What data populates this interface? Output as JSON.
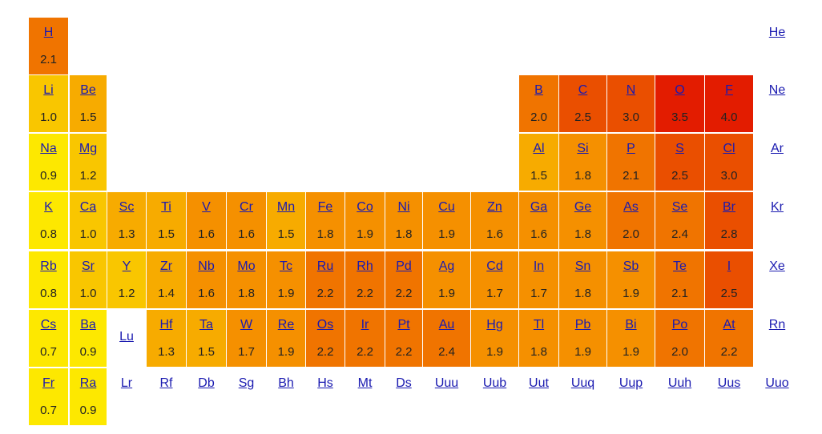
{
  "colors": {
    "link": "#1a1ab0",
    "scale": [
      "#fde800",
      "#f9c600",
      "#f7ab00",
      "#f59000",
      "#f07400",
      "#ea4f00",
      "#e31c00"
    ]
  },
  "elements": [
    {
      "symbol": "H",
      "value": "2.1",
      "row": 1,
      "col": 1
    },
    {
      "symbol": "He",
      "value": "",
      "row": 1,
      "col": 18
    },
    {
      "symbol": "Li",
      "value": "1.0",
      "row": 2,
      "col": 1
    },
    {
      "symbol": "Be",
      "value": "1.5",
      "row": 2,
      "col": 2
    },
    {
      "symbol": "B",
      "value": "2.0",
      "row": 2,
      "col": 13
    },
    {
      "symbol": "C",
      "value": "2.5",
      "row": 2,
      "col": 14
    },
    {
      "symbol": "N",
      "value": "3.0",
      "row": 2,
      "col": 15
    },
    {
      "symbol": "O",
      "value": "3.5",
      "row": 2,
      "col": 16
    },
    {
      "symbol": "F",
      "value": "4.0",
      "row": 2,
      "col": 17
    },
    {
      "symbol": "Ne",
      "value": "",
      "row": 2,
      "col": 18
    },
    {
      "symbol": "Na",
      "value": "0.9",
      "row": 3,
      "col": 1
    },
    {
      "symbol": "Mg",
      "value": "1.2",
      "row": 3,
      "col": 2
    },
    {
      "symbol": "Al",
      "value": "1.5",
      "row": 3,
      "col": 13
    },
    {
      "symbol": "Si",
      "value": "1.8",
      "row": 3,
      "col": 14
    },
    {
      "symbol": "P",
      "value": "2.1",
      "row": 3,
      "col": 15
    },
    {
      "symbol": "S",
      "value": "2.5",
      "row": 3,
      "col": 16
    },
    {
      "symbol": "Cl",
      "value": "3.0",
      "row": 3,
      "col": 17
    },
    {
      "symbol": "Ar",
      "value": "",
      "row": 3,
      "col": 18
    },
    {
      "symbol": "K",
      "value": "0.8",
      "row": 4,
      "col": 1
    },
    {
      "symbol": "Ca",
      "value": "1.0",
      "row": 4,
      "col": 2
    },
    {
      "symbol": "Sc",
      "value": "1.3",
      "row": 4,
      "col": 3
    },
    {
      "symbol": "Ti",
      "value": "1.5",
      "row": 4,
      "col": 4
    },
    {
      "symbol": "V",
      "value": "1.6",
      "row": 4,
      "col": 5
    },
    {
      "symbol": "Cr",
      "value": "1.6",
      "row": 4,
      "col": 6
    },
    {
      "symbol": "Mn",
      "value": "1.5",
      "row": 4,
      "col": 7
    },
    {
      "symbol": "Fe",
      "value": "1.8",
      "row": 4,
      "col": 8
    },
    {
      "symbol": "Co",
      "value": "1.9",
      "row": 4,
      "col": 9
    },
    {
      "symbol": "Ni",
      "value": "1.8",
      "row": 4,
      "col": 10
    },
    {
      "symbol": "Cu",
      "value": "1.9",
      "row": 4,
      "col": 11
    },
    {
      "symbol": "Zn",
      "value": "1.6",
      "row": 4,
      "col": 12
    },
    {
      "symbol": "Ga",
      "value": "1.6",
      "row": 4,
      "col": 13
    },
    {
      "symbol": "Ge",
      "value": "1.8",
      "row": 4,
      "col": 14
    },
    {
      "symbol": "As",
      "value": "2.0",
      "row": 4,
      "col": 15
    },
    {
      "symbol": "Se",
      "value": "2.4",
      "row": 4,
      "col": 16
    },
    {
      "symbol": "Br",
      "value": "2.8",
      "row": 4,
      "col": 17
    },
    {
      "symbol": "Kr",
      "value": "",
      "row": 4,
      "col": 18
    },
    {
      "symbol": "Rb",
      "value": "0.8",
      "row": 5,
      "col": 1
    },
    {
      "symbol": "Sr",
      "value": "1.0",
      "row": 5,
      "col": 2
    },
    {
      "symbol": "Y",
      "value": "1.2",
      "row": 5,
      "col": 3
    },
    {
      "symbol": "Zr",
      "value": "1.4",
      "row": 5,
      "col": 4
    },
    {
      "symbol": "Nb",
      "value": "1.6",
      "row": 5,
      "col": 5
    },
    {
      "symbol": "Mo",
      "value": "1.8",
      "row": 5,
      "col": 6
    },
    {
      "symbol": "Tc",
      "value": "1.9",
      "row": 5,
      "col": 7
    },
    {
      "symbol": "Ru",
      "value": "2.2",
      "row": 5,
      "col": 8
    },
    {
      "symbol": "Rh",
      "value": "2.2",
      "row": 5,
      "col": 9
    },
    {
      "symbol": "Pd",
      "value": "2.2",
      "row": 5,
      "col": 10
    },
    {
      "symbol": "Ag",
      "value": "1.9",
      "row": 5,
      "col": 11
    },
    {
      "symbol": "Cd",
      "value": "1.7",
      "row": 5,
      "col": 12
    },
    {
      "symbol": "In",
      "value": "1.7",
      "row": 5,
      "col": 13
    },
    {
      "symbol": "Sn",
      "value": "1.8",
      "row": 5,
      "col": 14
    },
    {
      "symbol": "Sb",
      "value": "1.9",
      "row": 5,
      "col": 15
    },
    {
      "symbol": "Te",
      "value": "2.1",
      "row": 5,
      "col": 16
    },
    {
      "symbol": "I",
      "value": "2.5",
      "row": 5,
      "col": 17
    },
    {
      "symbol": "Xe",
      "value": "",
      "row": 5,
      "col": 18
    },
    {
      "symbol": "Cs",
      "value": "0.7",
      "row": 6,
      "col": 1
    },
    {
      "symbol": "Ba",
      "value": "0.9",
      "row": 6,
      "col": 2
    },
    {
      "symbol": "Lu",
      "value": "",
      "row": 6,
      "col": 3
    },
    {
      "symbol": "Hf",
      "value": "1.3",
      "row": 6,
      "col": 4
    },
    {
      "symbol": "Ta",
      "value": "1.5",
      "row": 6,
      "col": 5
    },
    {
      "symbol": "W",
      "value": "1.7",
      "row": 6,
      "col": 6
    },
    {
      "symbol": "Re",
      "value": "1.9",
      "row": 6,
      "col": 7
    },
    {
      "symbol": "Os",
      "value": "2.2",
      "row": 6,
      "col": 8
    },
    {
      "symbol": "Ir",
      "value": "2.2",
      "row": 6,
      "col": 9
    },
    {
      "symbol": "Pt",
      "value": "2.2",
      "row": 6,
      "col": 10
    },
    {
      "symbol": "Au",
      "value": "2.4",
      "row": 6,
      "col": 11
    },
    {
      "symbol": "Hg",
      "value": "1.9",
      "row": 6,
      "col": 12
    },
    {
      "symbol": "Tl",
      "value": "1.8",
      "row": 6,
      "col": 13
    },
    {
      "symbol": "Pb",
      "value": "1.9",
      "row": 6,
      "col": 14
    },
    {
      "symbol": "Bi",
      "value": "1.9",
      "row": 6,
      "col": 15
    },
    {
      "symbol": "Po",
      "value": "2.0",
      "row": 6,
      "col": 16
    },
    {
      "symbol": "At",
      "value": "2.2",
      "row": 6,
      "col": 17
    },
    {
      "symbol": "Rn",
      "value": "",
      "row": 6,
      "col": 18
    },
    {
      "symbol": "Fr",
      "value": "0.7",
      "row": 7,
      "col": 1
    },
    {
      "symbol": "Ra",
      "value": "0.9",
      "row": 7,
      "col": 2
    },
    {
      "symbol": "Lr",
      "value": "",
      "row": 7,
      "col": 3
    },
    {
      "symbol": "Rf",
      "value": "",
      "row": 7,
      "col": 4
    },
    {
      "symbol": "Db",
      "value": "",
      "row": 7,
      "col": 5
    },
    {
      "symbol": "Sg",
      "value": "",
      "row": 7,
      "col": 6
    },
    {
      "symbol": "Bh",
      "value": "",
      "row": 7,
      "col": 7
    },
    {
      "symbol": "Hs",
      "value": "",
      "row": 7,
      "col": 8
    },
    {
      "symbol": "Mt",
      "value": "",
      "row": 7,
      "col": 9
    },
    {
      "symbol": "Ds",
      "value": "",
      "row": 7,
      "col": 10
    },
    {
      "symbol": "Uuu",
      "value": "",
      "row": 7,
      "col": 11
    },
    {
      "symbol": "Uub",
      "value": "",
      "row": 7,
      "col": 12
    },
    {
      "symbol": "Uut",
      "value": "",
      "row": 7,
      "col": 13
    },
    {
      "symbol": "Uuq",
      "value": "",
      "row": 7,
      "col": 14
    },
    {
      "symbol": "Uup",
      "value": "",
      "row": 7,
      "col": 15
    },
    {
      "symbol": "Uuh",
      "value": "",
      "row": 7,
      "col": 16
    },
    {
      "symbol": "Uus",
      "value": "",
      "row": 7,
      "col": 17
    },
    {
      "symbol": "Uuo",
      "value": "",
      "row": 7,
      "col": 18
    }
  ]
}
